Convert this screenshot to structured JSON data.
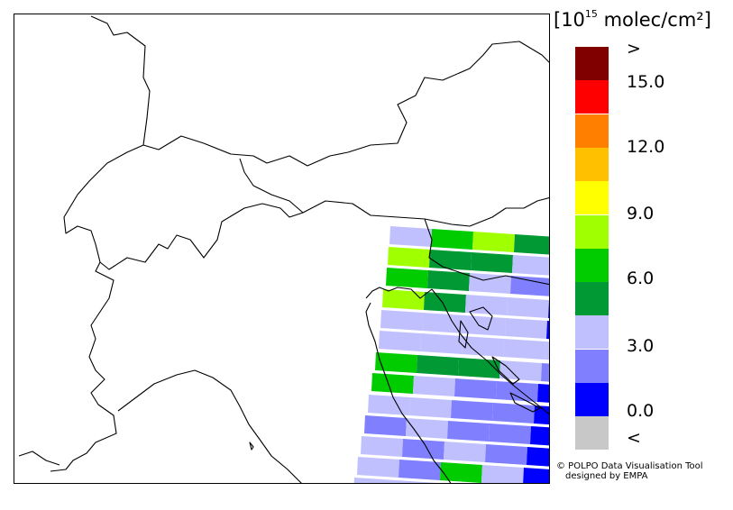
{
  "map": {
    "unit_base": "[10",
    "unit_exp": "15",
    "unit_rest": " molec/cm²]"
  },
  "legend": {
    "bins": [
      {
        "color": "#800000"
      },
      {
        "color": "#ff0000"
      },
      {
        "color": "#ff8000"
      },
      {
        "color": "#ffc000"
      },
      {
        "color": "#ffff00"
      },
      {
        "color": "#a0ff00"
      },
      {
        "color": "#00cc00"
      },
      {
        "color": "#009933"
      },
      {
        "color": "#c0c0ff"
      },
      {
        "color": "#8080ff"
      },
      {
        "color": "#0000ff"
      },
      {
        "color": "#c8c8c8"
      }
    ],
    "labels": [
      ">",
      "15.0",
      "12.0",
      "9.0",
      "6.0",
      "3.0",
      "0.0",
      "<"
    ]
  },
  "credit": {
    "line1": "© POLPO Data Visualisation Tool",
    "line2": "designed by EMPA"
  }
}
